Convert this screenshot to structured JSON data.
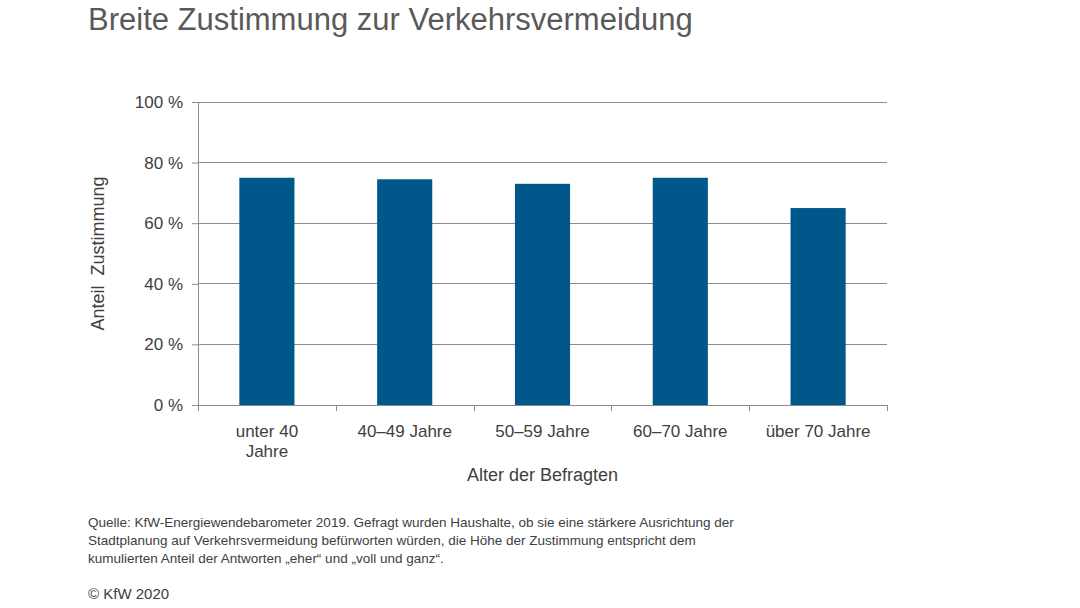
{
  "chart_data": {
    "type": "bar",
    "title": "Breite Zustimmung zur Verkehrsvermeidung",
    "x_label": "Alter der Befragten",
    "y_label": "Anteil  Zustimmung",
    "categories": [
      "unter 40\nJahre",
      "40–49 Jahre",
      "50–59 Jahre",
      "60–70 Jahre",
      "über 70 Jahre"
    ],
    "values": [
      75,
      74.5,
      73,
      75,
      65
    ],
    "color": "#00578a",
    "ylim": [
      0,
      100
    ],
    "yticks": [
      {
        "value": 0,
        "label": "0 %"
      },
      {
        "value": 20,
        "label": "20 %"
      },
      {
        "value": 40,
        "label": "40 %"
      },
      {
        "value": 60,
        "label": "60 %"
      },
      {
        "value": 80,
        "label": "80 %"
      },
      {
        "value": 100,
        "label": "100 %"
      }
    ],
    "grid": true,
    "annotations": [
      "Quelle: KfW-Energiewendebarometer 2019. Gefragt wurden Haushalte, ob sie eine stärkere Ausrichtung der",
      "Stadtplanung auf Verkehrsvermeidung befürworten würden, die Höhe der Zustimmung entspricht dem",
      "kumulierten Anteil der Antworten „eher“ und „voll und ganz“.",
      "© KfW 2020"
    ]
  }
}
